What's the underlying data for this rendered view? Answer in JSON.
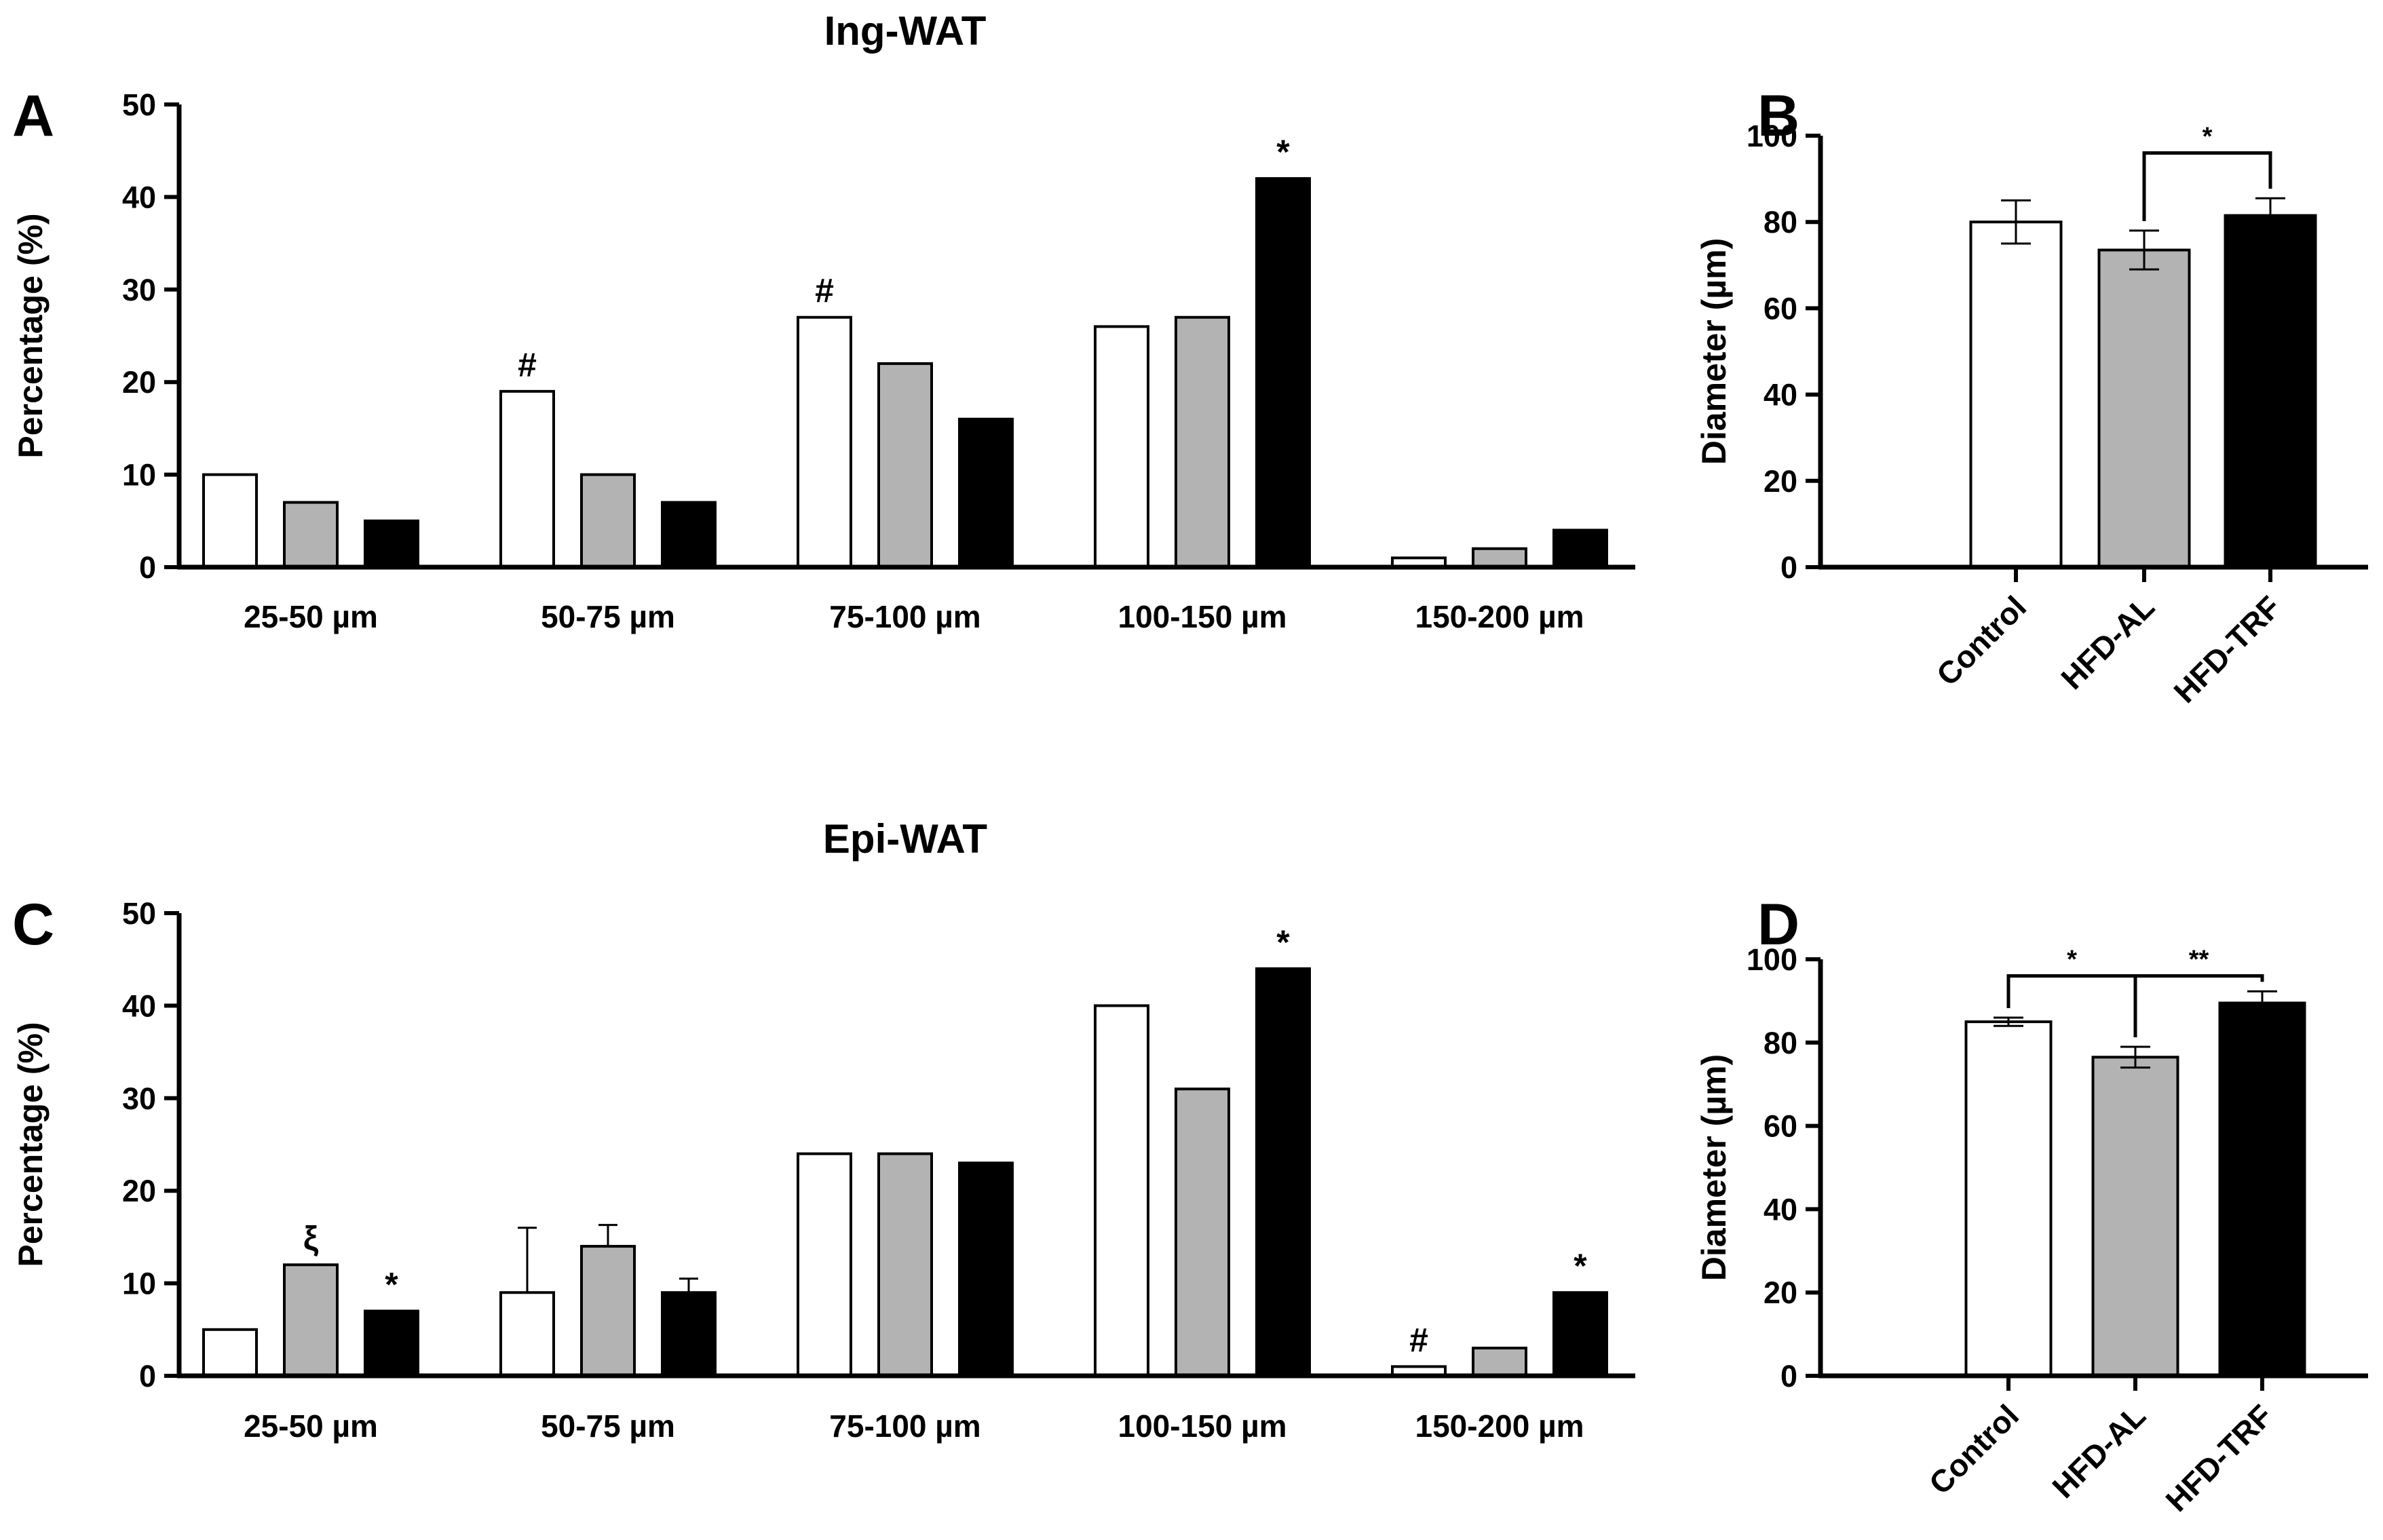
{
  "colors": {
    "control": "#ffffff",
    "hfd_al": "#b3b3b3",
    "hfd_trf": "#000000",
    "stroke": "#000000"
  },
  "chart_data": [
    {
      "panel": "A",
      "type": "bar",
      "title": "Ing-WAT",
      "ylabel": "Percentage (%)",
      "ylim": [
        0,
        50
      ],
      "yticks": [
        "0",
        "10",
        "20",
        "30",
        "40",
        "50"
      ],
      "categories": [
        "25-50 µm",
        "50-75 µm",
        "75-100 µm",
        "100-150 µm",
        "150-200 µm"
      ],
      "series": [
        {
          "name": "Control",
          "values": [
            10,
            19,
            27,
            26,
            1
          ],
          "errors": [
            0.1,
            0.1,
            0.1,
            0.1,
            0.1
          ]
        },
        {
          "name": "HFD-AL",
          "values": [
            7,
            10,
            22,
            27,
            2
          ],
          "errors": [
            0.1,
            0.1,
            0.1,
            0.1,
            0.1
          ]
        },
        {
          "name": "HFD-TRF",
          "values": [
            5,
            7,
            16,
            42,
            4
          ],
          "errors": [
            0.1,
            0.1,
            0.1,
            0.1,
            0.1
          ]
        }
      ],
      "annotations": [
        {
          "series": 0,
          "category": 1,
          "text": "#"
        },
        {
          "series": 0,
          "category": 2,
          "text": "#"
        },
        {
          "series": 2,
          "category": 3,
          "text": "*"
        }
      ]
    },
    {
      "panel": "B",
      "type": "bar",
      "title": "",
      "ylabel": "Diameter (µm)",
      "ylim": [
        0,
        100
      ],
      "yticks": [
        "0",
        "20",
        "40",
        "60",
        "80",
        "100"
      ],
      "categories": [
        "Control",
        "HFD-AL",
        "HFD-TRF"
      ],
      "values": [
        80,
        73.5,
        81.5
      ],
      "errors": [
        5,
        4.5,
        4
      ],
      "brackets": [
        {
          "from": 1,
          "to": 2,
          "text": "*",
          "level": 96
        }
      ]
    },
    {
      "panel": "C",
      "type": "bar",
      "title": "Epi-WAT",
      "ylabel": "Percentage (%)",
      "ylim": [
        0,
        50
      ],
      "yticks": [
        "0",
        "10",
        "20",
        "30",
        "40",
        "50"
      ],
      "categories": [
        "25-50 µm",
        "50-75 µm",
        "75-100 µm",
        "100-150 µm",
        "150-200 µm"
      ],
      "series": [
        {
          "name": "Control",
          "values": [
            5,
            9,
            24,
            40,
            1
          ],
          "errors": [
            0.1,
            7,
            0.1,
            0.1,
            0.1
          ]
        },
        {
          "name": "HFD-AL",
          "values": [
            12,
            14,
            24,
            31,
            3
          ],
          "errors": [
            0.1,
            2.3,
            0.1,
            0.1,
            0.1
          ]
        },
        {
          "name": "HFD-TRF",
          "values": [
            7,
            9,
            23,
            44,
            9
          ],
          "errors": [
            0.1,
            1.5,
            0.1,
            0.1,
            0.1
          ]
        }
      ],
      "annotations": [
        {
          "series": 1,
          "category": 0,
          "text": "ξ"
        },
        {
          "series": 2,
          "category": 0,
          "text": "*"
        },
        {
          "series": 2,
          "category": 3,
          "text": "*"
        },
        {
          "series": 0,
          "category": 4,
          "text": "#"
        },
        {
          "series": 2,
          "category": 4,
          "text": "*"
        }
      ]
    },
    {
      "panel": "D",
      "type": "bar",
      "title": "",
      "ylabel": "Diameter (µm)",
      "ylim": [
        0,
        100
      ],
      "yticks": [
        "0",
        "20",
        "40",
        "60",
        "80",
        "100"
      ],
      "categories": [
        "Control",
        "HFD-AL",
        "HFD-TRF"
      ],
      "values": [
        85,
        76.5,
        89.5
      ],
      "errors": [
        1,
        2.5,
        2.8
      ],
      "brackets": [
        {
          "from": 0,
          "to": 1,
          "text": "*",
          "level": 96
        },
        {
          "from": 1,
          "to": 2,
          "text": "**",
          "level": 96
        }
      ]
    }
  ]
}
